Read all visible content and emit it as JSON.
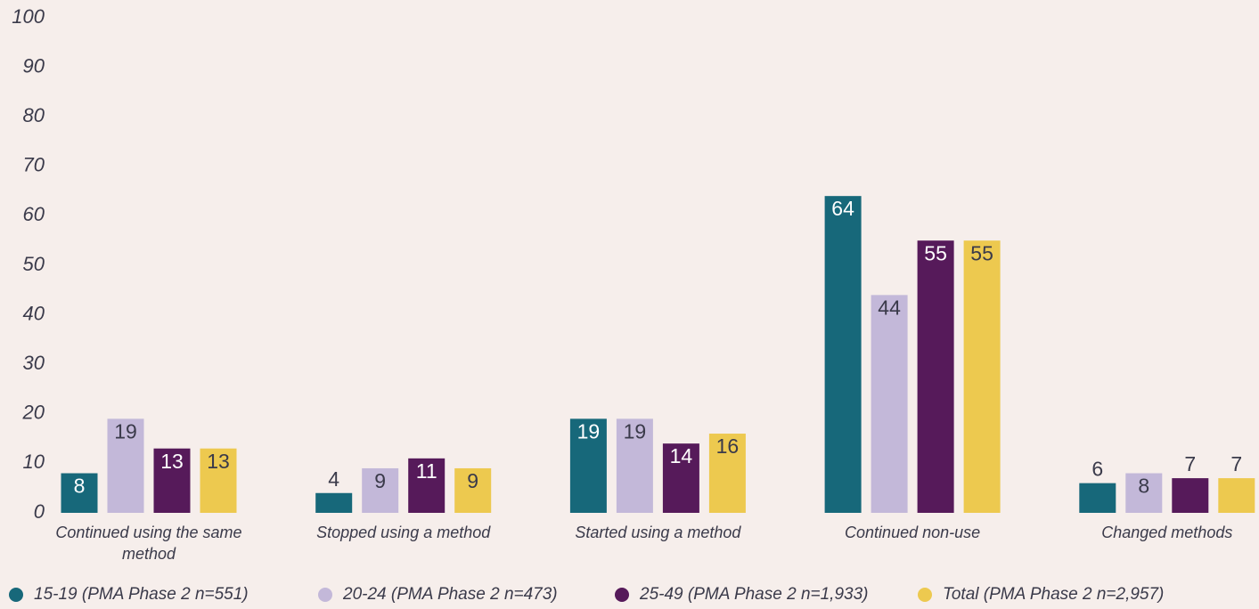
{
  "chart_data": {
    "type": "bar",
    "categories": [
      "Continued using the same method",
      "Stopped using a method",
      "Started using a method",
      "Continued non-use",
      "Changed methods"
    ],
    "series": [
      {
        "name": "15-19 (PMA Phase 2 n=551)",
        "color": "#17687a",
        "values": [
          8,
          4,
          19,
          64,
          6
        ]
      },
      {
        "name": "20-24 (PMA Phase 2 n=473)",
        "color": "#c3b8d9",
        "values": [
          19,
          9,
          19,
          44,
          8
        ]
      },
      {
        "name": "25-49 (PMA Phase 2 n=1,933)",
        "color": "#561a5a",
        "values": [
          13,
          11,
          14,
          55,
          7
        ]
      },
      {
        "name": "Total (PMA Phase 2 n=2,957)",
        "color": "#edc94f",
        "values": [
          13,
          9,
          16,
          55,
          7
        ]
      }
    ],
    "ylim": [
      0,
      100
    ],
    "yticks": [
      0,
      10,
      20,
      30,
      40,
      50,
      60,
      70,
      80,
      90,
      100
    ],
    "grid": false,
    "legend": "bottom"
  }
}
